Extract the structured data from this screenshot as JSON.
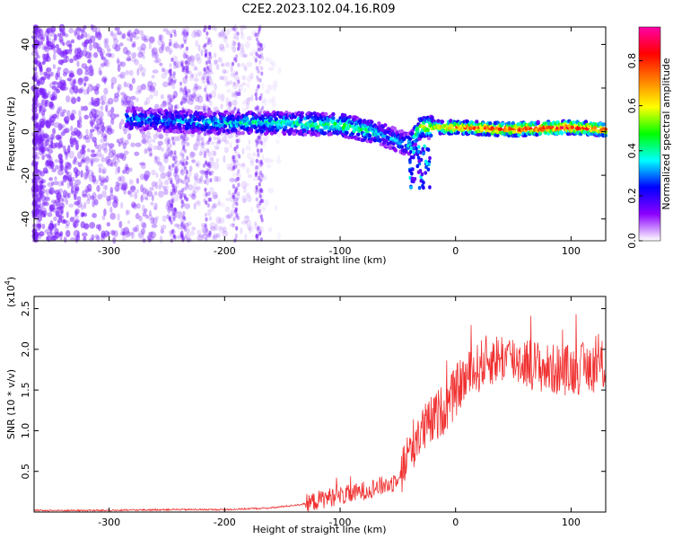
{
  "title": "C2E2.2023.102.04.16.R09",
  "colors": {
    "snr_line": "#f03030",
    "spectrogram_base": "#7a1fff",
    "colormap": [
      "#ffffff",
      "#8c00ff",
      "#0000ff",
      "#00ffff",
      "#00ff00",
      "#ffff00",
      "#ff8000",
      "#ff0000",
      "#ff00aa"
    ]
  },
  "chart_data": [
    {
      "type": "heatmap",
      "xlabel": "Height of straight line (km)",
      "ylabel": "Frequency (Hz)",
      "xlim": [
        -365,
        130
      ],
      "ylim": [
        -50,
        48
      ],
      "x_ticks": [
        -300,
        -200,
        -100,
        0,
        100
      ],
      "x_tick_labels": [
        "-300",
        "-200",
        "-100",
        "0",
        "100"
      ],
      "y_ticks": [
        -40,
        -20,
        0,
        20,
        40
      ],
      "y_tick_labels": [
        "-40",
        "-20",
        "0",
        "20",
        "40"
      ],
      "colorbar": {
        "label": "Normalized spectral amplitude",
        "range": [
          0,
          0.95
        ],
        "ticks": [
          0.0,
          0.2,
          0.4,
          0.6,
          0.8
        ],
        "tick_labels": [
          "0.0",
          "0.2",
          "0.4",
          "0.6",
          "0.8"
        ]
      },
      "ridge": {
        "x": [
          -280,
          -250,
          -200,
          -150,
          -100,
          -80,
          -60,
          -40,
          -30,
          0,
          50,
          100,
          130
        ],
        "freq": [
          6,
          5,
          4,
          4,
          3,
          1,
          -2,
          -6,
          2,
          2,
          1,
          2,
          1
        ],
        "amplitude": [
          0.3,
          0.3,
          0.35,
          0.4,
          0.45,
          0.45,
          0.3,
          0.35,
          0.55,
          0.75,
          0.85,
          0.85,
          0.8
        ]
      }
    },
    {
      "type": "line",
      "xlabel": "Height of straight line (km)",
      "ylabel": "SNR (10 * v/v)",
      "y_multiplier": "(x10",
      "y_multiplier_exp": "4",
      "y_multiplier_close": ")",
      "xlim": [
        -365,
        130
      ],
      "ylim": [
        0,
        2.65
      ],
      "x_ticks": [
        -300,
        -200,
        -100,
        0,
        100
      ],
      "x_tick_labels": [
        "-300",
        "-200",
        "-100",
        "0",
        "100"
      ],
      "y_ticks": [
        0.5,
        1.0,
        1.5,
        2.0,
        2.5
      ],
      "y_tick_labels": [
        "0.5",
        "1.0",
        "1.5",
        "2.0",
        "2.5"
      ],
      "series": [
        {
          "x": [
            -365,
            -300,
            -250,
            -200,
            -160,
            -130,
            -110,
            -90,
            -70,
            -55,
            -45,
            -35,
            -25,
            -15,
            -5,
            5,
            15,
            25,
            40,
            60,
            80,
            100,
            130
          ],
          "values": [
            0.02,
            0.02,
            0.03,
            0.03,
            0.05,
            0.1,
            0.18,
            0.22,
            0.3,
            0.35,
            0.55,
            0.9,
            1.05,
            1.2,
            1.35,
            1.6,
            1.7,
            1.85,
            1.9,
            1.85,
            1.75,
            1.75,
            1.8
          ]
        }
      ]
    }
  ]
}
